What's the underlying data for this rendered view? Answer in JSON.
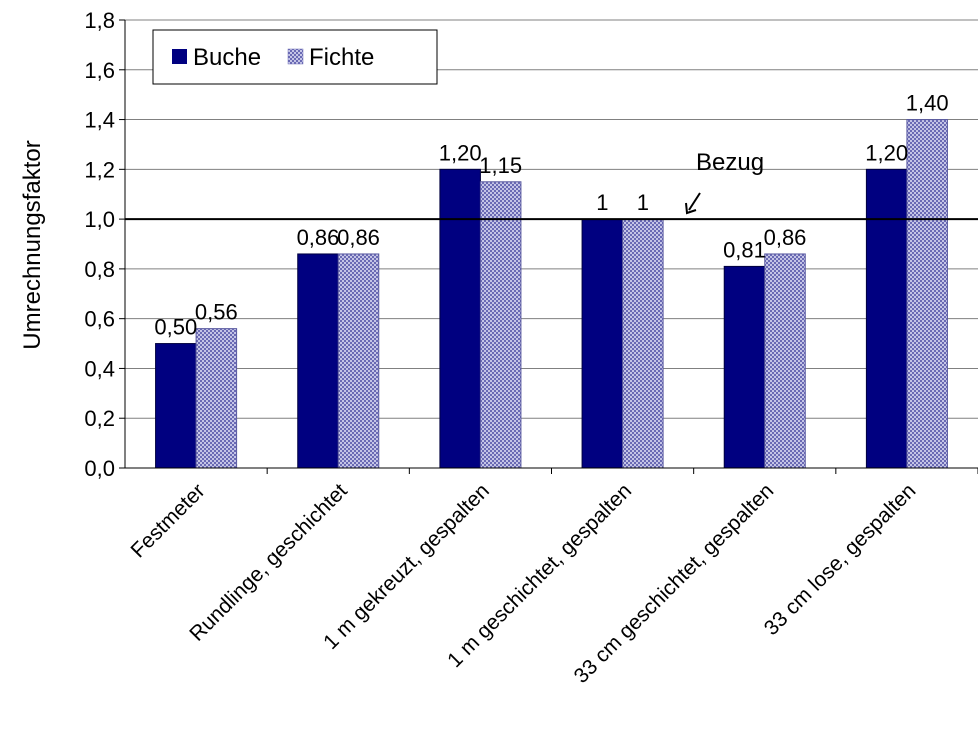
{
  "chart_data": {
    "type": "bar",
    "ylabel": "Umrechnungsfaktor",
    "xlabel": "",
    "ylim": [
      0,
      1.8
    ],
    "yticks": [
      "0,0",
      "0,2",
      "0,4",
      "0,6",
      "0,8",
      "1,0",
      "1,2",
      "1,4",
      "1,6",
      "1,8"
    ],
    "grid": true,
    "legend_position": "top-left",
    "categories": [
      "Festmeter",
      "Rundlinge,  geschichtet",
      "1 m gekreuzt,  gespalten",
      "1 m geschichtet,  gespalten",
      "33 cm geschichtet,  gespalten",
      "33 cm lose,  gespalten"
    ],
    "series": [
      {
        "name": "Buche",
        "color": "#000080",
        "pattern": "solid",
        "values": [
          0.5,
          0.86,
          1.2,
          1.0,
          0.81,
          1.2
        ],
        "labels": [
          "0,50",
          "0,86",
          "1,20",
          "1",
          "0,81",
          "1,20"
        ]
      },
      {
        "name": "Fichte",
        "color": "#9999cc",
        "pattern": "checkered",
        "values": [
          0.56,
          0.86,
          1.15,
          1.0,
          0.86,
          1.4
        ],
        "labels": [
          "0,56",
          "0,86",
          "1,15",
          "1",
          "0,86",
          "1,40"
        ]
      }
    ],
    "reference_line": {
      "value": 1.0,
      "label": "Bezug"
    }
  }
}
